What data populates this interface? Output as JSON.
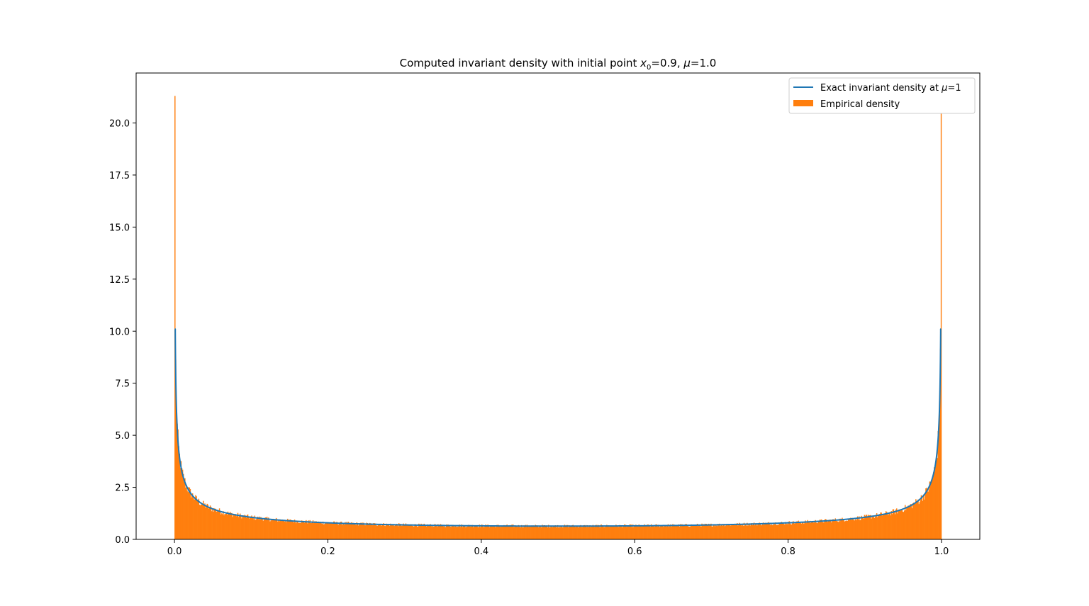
{
  "chart_data": {
    "type": "bar",
    "title_parts": {
      "prefix": "Computed invariant density with initial point ",
      "x_sym": "x",
      "x_sub": "0",
      "x_eq": "=0.9, ",
      "mu_sym": "μ",
      "mu_eq": "=1.0"
    },
    "xlabel": "",
    "ylabel": "",
    "xlim": [
      -0.05,
      1.05
    ],
    "ylim": [
      0,
      22.4
    ],
    "xticks": [
      0.0,
      0.2,
      0.4,
      0.6,
      0.8,
      1.0
    ],
    "xtick_labels": [
      "0.0",
      "0.2",
      "0.4",
      "0.6",
      "0.8",
      "1.0"
    ],
    "yticks": [
      0.0,
      2.5,
      5.0,
      7.5,
      10.0,
      12.5,
      15.0,
      17.5,
      20.0
    ],
    "ytick_labels": [
      "0.0",
      "2.5",
      "5.0",
      "7.5",
      "10.0",
      "12.5",
      "15.0",
      "17.5",
      "20.0"
    ],
    "series": [
      {
        "name": "Exact invariant density at μ=1",
        "legend_prefix": "Exact invariant density at ",
        "legend_mu": "μ",
        "legend_suffix": "=1",
        "kind": "line",
        "color": "#1f77b4",
        "formula": "1/(pi*sqrt(x*(1-x)))",
        "x_range": [
          0.0005,
          0.9995
        ],
        "peak_value": 10.1
      },
      {
        "name": "Empirical density",
        "kind": "histogram",
        "color": "#ff7f0e",
        "bins": 1000,
        "x_range": [
          0.0,
          1.0
        ],
        "first_bin_value": 21.3
      }
    ],
    "legend_position": "upper right",
    "grid": false
  }
}
